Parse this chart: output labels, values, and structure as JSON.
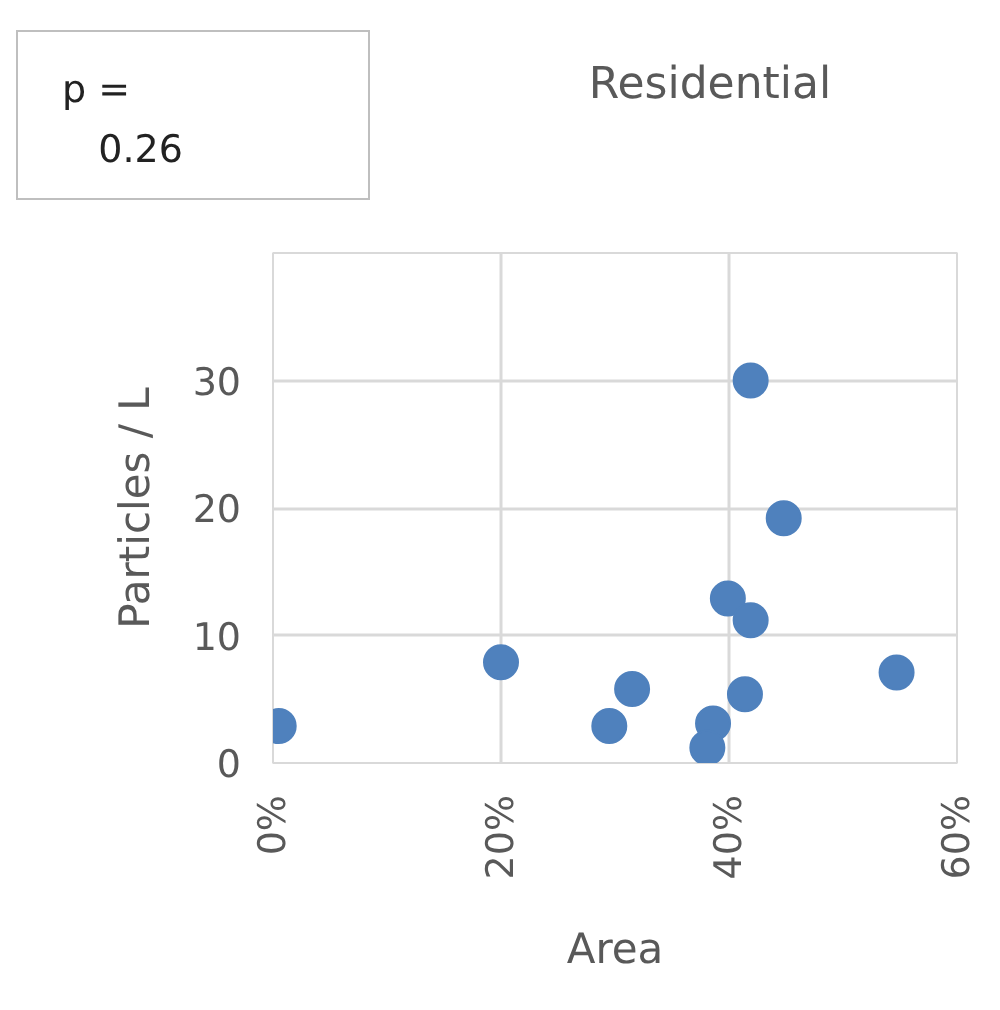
{
  "chart_data": {
    "type": "scatter",
    "title": "Residential",
    "xlabel": "Area",
    "ylabel": "Particles / L",
    "annotations": [
      "p =\n0.26"
    ],
    "x": [
      0.5,
      20,
      29.5,
      31.5,
      38.6,
      38.1,
      39.9,
      41.9,
      41.4,
      41.9,
      44.8,
      54.7
    ],
    "series": [
      {
        "color": "#4f81bd",
        "values": [
          2.9,
          7.9,
          2.9,
          5.8,
          3.1,
          1.2,
          12.9,
          11.2,
          5.4,
          30.0,
          19.2,
          7.1
        ]
      }
    ],
    "xlim": [
      0,
      60
    ],
    "ylim": [
      0,
      40
    ],
    "xticks": [
      {
        "value": 0,
        "label": "0%"
      },
      {
        "value": 20,
        "label": "20%"
      },
      {
        "value": 40,
        "label": "40%"
      },
      {
        "value": 60,
        "label": "60%"
      }
    ],
    "yticks": [
      0,
      10,
      20,
      30
    ],
    "grid": true,
    "marker": "circle"
  }
}
